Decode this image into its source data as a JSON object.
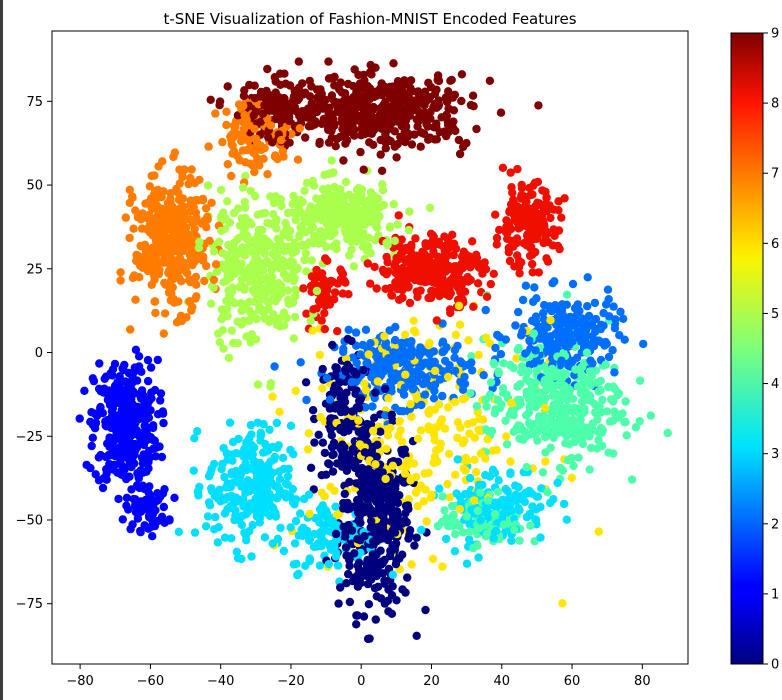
{
  "chart_data": {
    "type": "scatter",
    "title": "t-SNE Visualization of Fashion-MNIST Encoded Features",
    "xlabel": "",
    "ylabel": "",
    "xlim": [
      -88,
      93
    ],
    "ylim": [
      -93,
      96
    ],
    "xticks": [
      -80,
      -60,
      -40,
      -20,
      0,
      20,
      40,
      60,
      80
    ],
    "yticks": [
      -75,
      -50,
      -25,
      0,
      25,
      50,
      75
    ],
    "xtick_labels": [
      "−80",
      "−60",
      "−40",
      "−20",
      "0",
      "20",
      "40",
      "60",
      "80"
    ],
    "ytick_labels": [
      "−75",
      "−50",
      "−25",
      "0",
      "25",
      "50",
      "75"
    ],
    "colorbar": {
      "colormap": "jet",
      "range": [
        0,
        9
      ],
      "ticks": [
        0,
        1,
        2,
        3,
        4,
        5,
        6,
        7,
        8,
        9
      ],
      "tick_labels": [
        "0",
        "1",
        "2",
        "3",
        "4",
        "5",
        "6",
        "7",
        "8",
        "9"
      ]
    },
    "grid": false,
    "clusters": [
      {
        "label": 0,
        "color": "#00007f",
        "center": [
          4,
          -50
        ],
        "spread": [
          7,
          18
        ],
        "points": 420
      },
      {
        "label": 0,
        "color": "#00007f",
        "center": [
          -5,
          -18
        ],
        "spread": [
          5,
          12
        ],
        "points": 140
      },
      {
        "label": 1,
        "color": "#0000ff",
        "center": [
          -67,
          -22
        ],
        "spread": [
          6,
          13
        ],
        "points": 360
      },
      {
        "label": 1,
        "color": "#0000ff",
        "center": [
          -61,
          -47
        ],
        "spread": [
          4,
          4
        ],
        "points": 60
      },
      {
        "label": 2,
        "color": "#006fff",
        "center": [
          12,
          -5
        ],
        "spread": [
          13,
          7
        ],
        "points": 260
      },
      {
        "label": 2,
        "color": "#006fff",
        "center": [
          58,
          5
        ],
        "spread": [
          10,
          8
        ],
        "points": 230
      },
      {
        "label": 3,
        "color": "#00dfff",
        "center": [
          -32,
          -40
        ],
        "spread": [
          8,
          12
        ],
        "points": 260
      },
      {
        "label": 3,
        "color": "#00dfff",
        "center": [
          -8,
          -55
        ],
        "spread": [
          8,
          7
        ],
        "points": 110
      },
      {
        "label": 3,
        "color": "#00dfff",
        "center": [
          38,
          -45
        ],
        "spread": [
          10,
          8
        ],
        "points": 140
      },
      {
        "label": 4,
        "color": "#4dffaa",
        "center": [
          55,
          -15
        ],
        "spread": [
          13,
          12
        ],
        "points": 360
      },
      {
        "label": 4,
        "color": "#4dffaa",
        "center": [
          35,
          -50
        ],
        "spread": [
          8,
          5
        ],
        "points": 90
      },
      {
        "label": 5,
        "color": "#aaff4d",
        "center": [
          -30,
          25
        ],
        "spread": [
          9,
          15
        ],
        "points": 320
      },
      {
        "label": 5,
        "color": "#aaff4d",
        "center": [
          -5,
          40
        ],
        "spread": [
          11,
          7
        ],
        "points": 280
      },
      {
        "label": 6,
        "color": "#ffe500",
        "center": [
          15,
          -25
        ],
        "spread": [
          22,
          22
        ],
        "points": 260
      },
      {
        "label": 7,
        "color": "#ff7c00",
        "center": [
          -54,
          33
        ],
        "spread": [
          7,
          13
        ],
        "points": 360
      },
      {
        "label": 7,
        "color": "#ff7c00",
        "center": [
          -30,
          65
        ],
        "spread": [
          7,
          7
        ],
        "points": 110
      },
      {
        "label": 8,
        "color": "#ef0f00",
        "center": [
          20,
          25
        ],
        "spread": [
          10,
          7
        ],
        "points": 260
      },
      {
        "label": 8,
        "color": "#ef0f00",
        "center": [
          47,
          38
        ],
        "spread": [
          6,
          8
        ],
        "points": 170
      },
      {
        "label": 8,
        "color": "#ef0f00",
        "center": [
          -10,
          18
        ],
        "spread": [
          4,
          6
        ],
        "points": 60
      },
      {
        "label": 9,
        "color": "#7f0000",
        "center": [
          5,
          72
        ],
        "spread": [
          17,
          7
        ],
        "points": 480
      },
      {
        "label": 9,
        "color": "#7f0000",
        "center": [
          -25,
          72
        ],
        "spread": [
          8,
          6
        ],
        "points": 120
      }
    ]
  }
}
